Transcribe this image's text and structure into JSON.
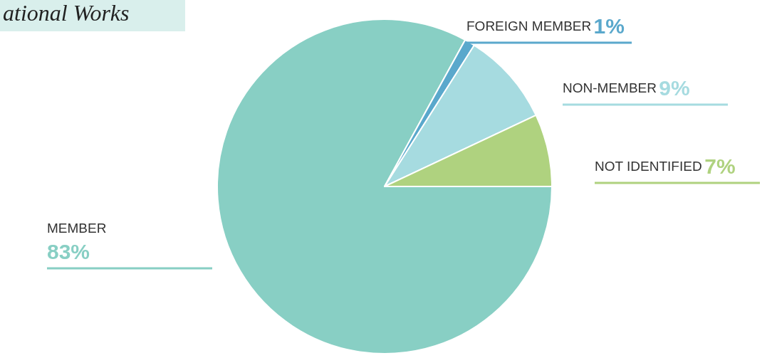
{
  "chart_data": {
    "type": "pie",
    "title": "ational Works",
    "categories": [
      "MEMBER",
      "FOREIGN MEMBER",
      "NON-MEMBER",
      "NOT IDENTIFIED"
    ],
    "values": [
      83,
      1,
      9,
      7
    ],
    "value_labels": [
      "83%",
      "1%",
      "9%",
      "7%"
    ],
    "colors": [
      "#88cfc4",
      "#5aa8cc",
      "#a6dbe0",
      "#afd27f"
    ],
    "legend": false
  }
}
